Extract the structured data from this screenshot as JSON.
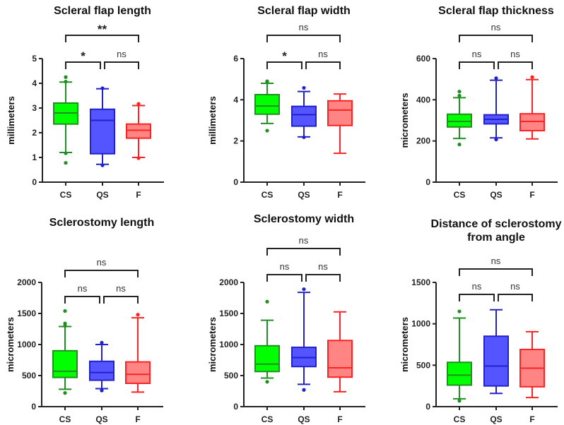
{
  "chart_data": [
    {
      "type": "box",
      "title": [
        "Scleral flap length"
      ],
      "ylabel": "millimeters",
      "ylim": [
        0,
        5
      ],
      "yticks": [
        "0",
        "1",
        "2",
        "3",
        "4",
        "5"
      ],
      "ytick_values": [
        0,
        1,
        2,
        3,
        4,
        5
      ],
      "categories": [
        "CS",
        "QS",
        "F"
      ],
      "boxes": [
        {
          "whisker_low": 1.2,
          "q1": 2.35,
          "median": 2.8,
          "q3": 3.2,
          "whisker_high": 4.05,
          "outliers": [
            4.25,
            4.07,
            1.17,
            0.78
          ]
        },
        {
          "whisker_low": 0.72,
          "q1": 1.15,
          "median": 2.5,
          "q3": 2.95,
          "whisker_high": 3.78,
          "outliers": [
            3.8,
            0.68
          ]
        },
        {
          "whisker_low": 1.0,
          "q1": 1.78,
          "median": 2.1,
          "q3": 2.35,
          "whisker_high": 3.1,
          "outliers": [
            3.17,
            0.97
          ]
        }
      ],
      "comparisons": [
        {
          "pair": [
            "CS",
            "QS"
          ],
          "label": "*"
        },
        {
          "pair": [
            "QS",
            "F"
          ],
          "label": "ns"
        },
        {
          "pair": [
            "CS",
            "F"
          ],
          "label": "**"
        }
      ]
    },
    {
      "type": "box",
      "title": [
        "Scleral flap width"
      ],
      "ylabel": "millimeters",
      "ylim": [
        0,
        6
      ],
      "yticks": [
        "0",
        "2",
        "4",
        "6"
      ],
      "ytick_values": [
        0,
        2,
        4,
        6
      ],
      "categories": [
        "CS",
        "QS",
        "F"
      ],
      "boxes": [
        {
          "whisker_low": 2.85,
          "q1": 3.3,
          "median": 3.7,
          "q3": 4.25,
          "whisker_high": 4.8,
          "outliers": [
            4.88,
            4.9,
            2.5
          ]
        },
        {
          "whisker_low": 2.2,
          "q1": 2.72,
          "median": 3.28,
          "q3": 3.68,
          "whisker_high": 4.4,
          "outliers": [
            4.58,
            2.18
          ]
        },
        {
          "whisker_low": 1.4,
          "q1": 2.75,
          "median": 3.5,
          "q3": 3.95,
          "whisker_high": 4.28,
          "outliers": []
        }
      ],
      "comparisons": [
        {
          "pair": [
            "CS",
            "QS"
          ],
          "label": "*"
        },
        {
          "pair": [
            "QS",
            "F"
          ],
          "label": "ns"
        },
        {
          "pair": [
            "CS",
            "F"
          ],
          "label": "ns"
        }
      ]
    },
    {
      "type": "box",
      "title": [
        "Scleral flap thickness"
      ],
      "ylabel": "micrometers",
      "ylim": [
        0,
        600
      ],
      "yticks": [
        "0",
        "200",
        "400",
        "600"
      ],
      "ytick_values": [
        0,
        200,
        400,
        600
      ],
      "categories": [
        "CS",
        "QS",
        "F"
      ],
      "boxes": [
        {
          "whisker_low": 212,
          "q1": 268,
          "median": 295,
          "q3": 330,
          "whisker_high": 410,
          "outliers": [
            440,
            420,
            183
          ]
        },
        {
          "whisker_low": 215,
          "q1": 283,
          "median": 305,
          "q3": 327,
          "whisker_high": 495,
          "outliers": [
            505,
            207
          ]
        },
        {
          "whisker_low": 210,
          "q1": 250,
          "median": 295,
          "q3": 332,
          "whisker_high": 498,
          "outliers": [
            510
          ]
        }
      ],
      "comparisons": [
        {
          "pair": [
            "CS",
            "QS"
          ],
          "label": "ns"
        },
        {
          "pair": [
            "QS",
            "F"
          ],
          "label": "ns"
        },
        {
          "pair": [
            "CS",
            "F"
          ],
          "label": "ns"
        }
      ]
    },
    {
      "type": "box",
      "title": [
        "Sclerostomy length"
      ],
      "ylabel": "micrometers",
      "ylim": [
        0,
        2000
      ],
      "yticks": [
        "0",
        "500",
        "1000",
        "1500",
        "2000"
      ],
      "ytick_values": [
        0,
        500,
        1000,
        1500,
        2000
      ],
      "categories": [
        "CS",
        "QS",
        "F"
      ],
      "boxes": [
        {
          "whisker_low": 280,
          "q1": 470,
          "median": 570,
          "q3": 900,
          "whisker_high": 1290,
          "outliers": [
            1540,
            1340,
            1300,
            220
          ]
        },
        {
          "whisker_low": 290,
          "q1": 425,
          "median": 550,
          "q3": 730,
          "whisker_high": 1000,
          "outliers": [
            1030,
            260
          ]
        },
        {
          "whisker_low": 235,
          "q1": 375,
          "median": 520,
          "q3": 720,
          "whisker_high": 1430,
          "outliers": [
            1480
          ]
        }
      ],
      "comparisons": [
        {
          "pair": [
            "CS",
            "QS"
          ],
          "label": "ns"
        },
        {
          "pair": [
            "QS",
            "F"
          ],
          "label": "ns"
        },
        {
          "pair": [
            "CS",
            "F"
          ],
          "label": "ns"
        }
      ]
    },
    {
      "type": "box",
      "title": [
        "Sclerostomy width"
      ],
      "ylabel": "micrometers",
      "ylim": [
        0,
        2000
      ],
      "yticks": [
        "0",
        "500",
        "1000",
        "1500",
        "2000"
      ],
      "ytick_values": [
        0,
        500,
        1000,
        1500,
        2000
      ],
      "categories": [
        "CS",
        "QS",
        "F"
      ],
      "boxes": [
        {
          "whisker_low": 460,
          "q1": 565,
          "median": 685,
          "q3": 980,
          "whisker_high": 1390,
          "outliers": [
            1690,
            400
          ]
        },
        {
          "whisker_low": 360,
          "q1": 645,
          "median": 790,
          "q3": 955,
          "whisker_high": 1840,
          "outliers": [
            1890,
            270
          ]
        },
        {
          "whisker_low": 240,
          "q1": 475,
          "median": 625,
          "q3": 1065,
          "whisker_high": 1525,
          "outliers": []
        }
      ],
      "comparisons": [
        {
          "pair": [
            "CS",
            "QS"
          ],
          "label": "ns"
        },
        {
          "pair": [
            "QS",
            "F"
          ],
          "label": "ns"
        },
        {
          "pair": [
            "CS",
            "F"
          ],
          "label": "ns"
        }
      ]
    },
    {
      "type": "box",
      "title": [
        "Distance of sclerostomy",
        "from angle"
      ],
      "ylabel": "micrometers",
      "ylim": [
        0,
        1500
      ],
      "yticks": [
        "0",
        "500",
        "1000",
        "1500"
      ],
      "ytick_values": [
        0,
        500,
        1000,
        1500
      ],
      "categories": [
        "CS",
        "QS",
        "F"
      ],
      "boxes": [
        {
          "whisker_low": 95,
          "q1": 260,
          "median": 380,
          "q3": 535,
          "whisker_high": 1070,
          "outliers": [
            1150,
            70
          ]
        },
        {
          "whisker_low": 160,
          "q1": 250,
          "median": 490,
          "q3": 850,
          "whisker_high": 1170,
          "outliers": []
        },
        {
          "whisker_low": 110,
          "q1": 240,
          "median": 465,
          "q3": 690,
          "whisker_high": 905,
          "outliers": []
        }
      ],
      "comparisons": [
        {
          "pair": [
            "CS",
            "QS"
          ],
          "label": "ns"
        },
        {
          "pair": [
            "QS",
            "F"
          ],
          "label": "ns"
        },
        {
          "pair": [
            "CS",
            "F"
          ],
          "label": "ns"
        }
      ]
    }
  ],
  "colors": {
    "CS": {
      "fill": "#00ff00",
      "stroke": "#1f8f1f"
    },
    "QS": {
      "fill": "#5555ff",
      "stroke": "#2222cc"
    },
    "F": {
      "fill": "#ff8585",
      "stroke": "#ff2222"
    }
  }
}
